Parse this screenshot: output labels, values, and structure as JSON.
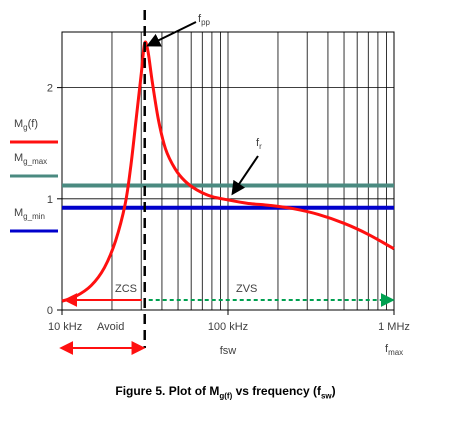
{
  "colors": {
    "curve": "#ff1010",
    "grid": "#000000",
    "mg_max_line": "#4a8a80",
    "mg_min_line": "#0000cc",
    "zvs": "#00a050",
    "zcs": "#ff1010",
    "dashed": "#000000"
  },
  "chart_data": {
    "type": "line",
    "xscale": "log",
    "xlim": [
      10000,
      1000000
    ],
    "ylim": [
      0,
      2.5
    ],
    "x_ticks": [
      {
        "value": 10000,
        "label": "10 kHz"
      },
      {
        "value": 100000,
        "label": "100 kHz"
      },
      {
        "value": 1000000,
        "label": "1 MHz"
      }
    ],
    "y_ticks": [
      {
        "value": 0,
        "label": "0"
      },
      {
        "value": 1,
        "label": "1"
      },
      {
        "value": 2,
        "label": "2"
      }
    ],
    "xlabel": "fsw",
    "grid": true,
    "series": [
      {
        "name": "Mg(f)",
        "x": [
          10000,
          12000,
          15000,
          18000,
          21000,
          24000,
          26000,
          28000,
          30000,
          31500,
          33000,
          35000,
          38000,
          42000,
          48000,
          55000,
          65000,
          80000,
          100000,
          130000,
          180000,
          250000,
          350000,
          500000,
          700000,
          1000000
        ],
        "y": [
          0.08,
          0.12,
          0.22,
          0.38,
          0.62,
          0.95,
          1.3,
          1.72,
          2.12,
          2.4,
          2.32,
          2.05,
          1.72,
          1.45,
          1.27,
          1.16,
          1.08,
          1.02,
          0.99,
          0.96,
          0.94,
          0.91,
          0.86,
          0.78,
          0.68,
          0.55
        ]
      }
    ],
    "hlines": [
      {
        "name": "Mg_max",
        "y": 1.12
      },
      {
        "name": "Mg_min",
        "y": 0.92
      }
    ],
    "vline_x": 31500,
    "annotations": {
      "fpp": {
        "label": "f",
        "sub": "pp"
      },
      "fr": {
        "label": "f",
        "sub": "r"
      },
      "fmax": {
        "label": "f",
        "sub": "max"
      },
      "zcs": "ZCS",
      "zvs": "ZVS",
      "avoid": "Avoid"
    },
    "legend": [
      {
        "label": "M",
        "sub": "g",
        "suffix": "(f)"
      },
      {
        "label": "M",
        "sub": "g_max",
        "suffix": ""
      },
      {
        "label": "M",
        "sub": "g_min",
        "suffix": ""
      }
    ]
  },
  "caption": {
    "prefix": "Figure 5. Plot of M",
    "sub1": "g(f)",
    "middle": " vs frequency (f",
    "sub2": "sw",
    "suffix": ")"
  }
}
